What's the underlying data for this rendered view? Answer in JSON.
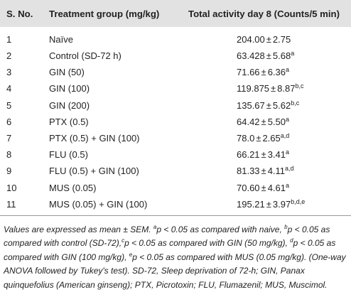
{
  "headers": {
    "no": "S. No.",
    "group": "Treatment group (mg/kg)",
    "activity": "Total activity day 8 (Counts/5 min)"
  },
  "rows": [
    {
      "no": "1",
      "group": "Naïve",
      "mean": "204.00",
      "sem": "2.75",
      "sup": ""
    },
    {
      "no": "2",
      "group": "Control (SD-72 h)",
      "mean": "63.428",
      "sem": "5.68",
      "sup": "a"
    },
    {
      "no": "3",
      "group": "GIN (50)",
      "mean": "71.66",
      "sem": "6.36",
      "sup": "a"
    },
    {
      "no": "4",
      "group": "GIN (100)",
      "mean": "119.875",
      "sem": "8.87",
      "sup": "b,c"
    },
    {
      "no": "5",
      "group": "GIN (200)",
      "mean": "135.67",
      "sem": "5.62",
      "sup": "b,c"
    },
    {
      "no": "6",
      "group": "PTX (0.5)",
      "mean": "64.42",
      "sem": "5.50",
      "sup": "a"
    },
    {
      "no": "7",
      "group": "PTX (0.5) + GIN (100)",
      "mean": "78.0",
      "sem": "2.65",
      "sup": "a,d"
    },
    {
      "no": "8",
      "group": "FLU (0.5)",
      "mean": "66.21",
      "sem": "3.41",
      "sup": "a"
    },
    {
      "no": "9",
      "group": "FLU (0.5) + GIN (100)",
      "mean": "81.33",
      "sem": "4.11",
      "sup": "a,d"
    },
    {
      "no": "10",
      "group": "MUS (0.05)",
      "mean": "70.60",
      "sem": "4.61",
      "sup": "a"
    },
    {
      "no": "11",
      "group": "MUS (0.05) + GIN (100)",
      "mean": "195.21",
      "sem": "3.97",
      "sup": "b,d,e"
    }
  ],
  "pm": "±",
  "footnote": {
    "t0": "Values are expressed as mean ± SEM. ",
    "s1": "a",
    "t1": "p < 0.05 as compared with naive, ",
    "s2": "b",
    "t2": "p < 0.05 as compared with control (SD-72),",
    "s3": "c",
    "t3": "p < 0.05 as compared with GIN (50 mg/kg), ",
    "s4": "d",
    "t4": "p < 0.05 as compared with GIN (100 mg/kg), ",
    "s5": "e",
    "t5": "p < 0.05 as compared with MUS (0.05 mg/kg). (One-way ANOVA followed by Tukey's test). SD-72, Sleep deprivation of 72-h; GIN, Panax quinquefolius (American ginseng); PTX, Picrotoxin; FLU, Flumazenil; MUS, Muscimol."
  }
}
